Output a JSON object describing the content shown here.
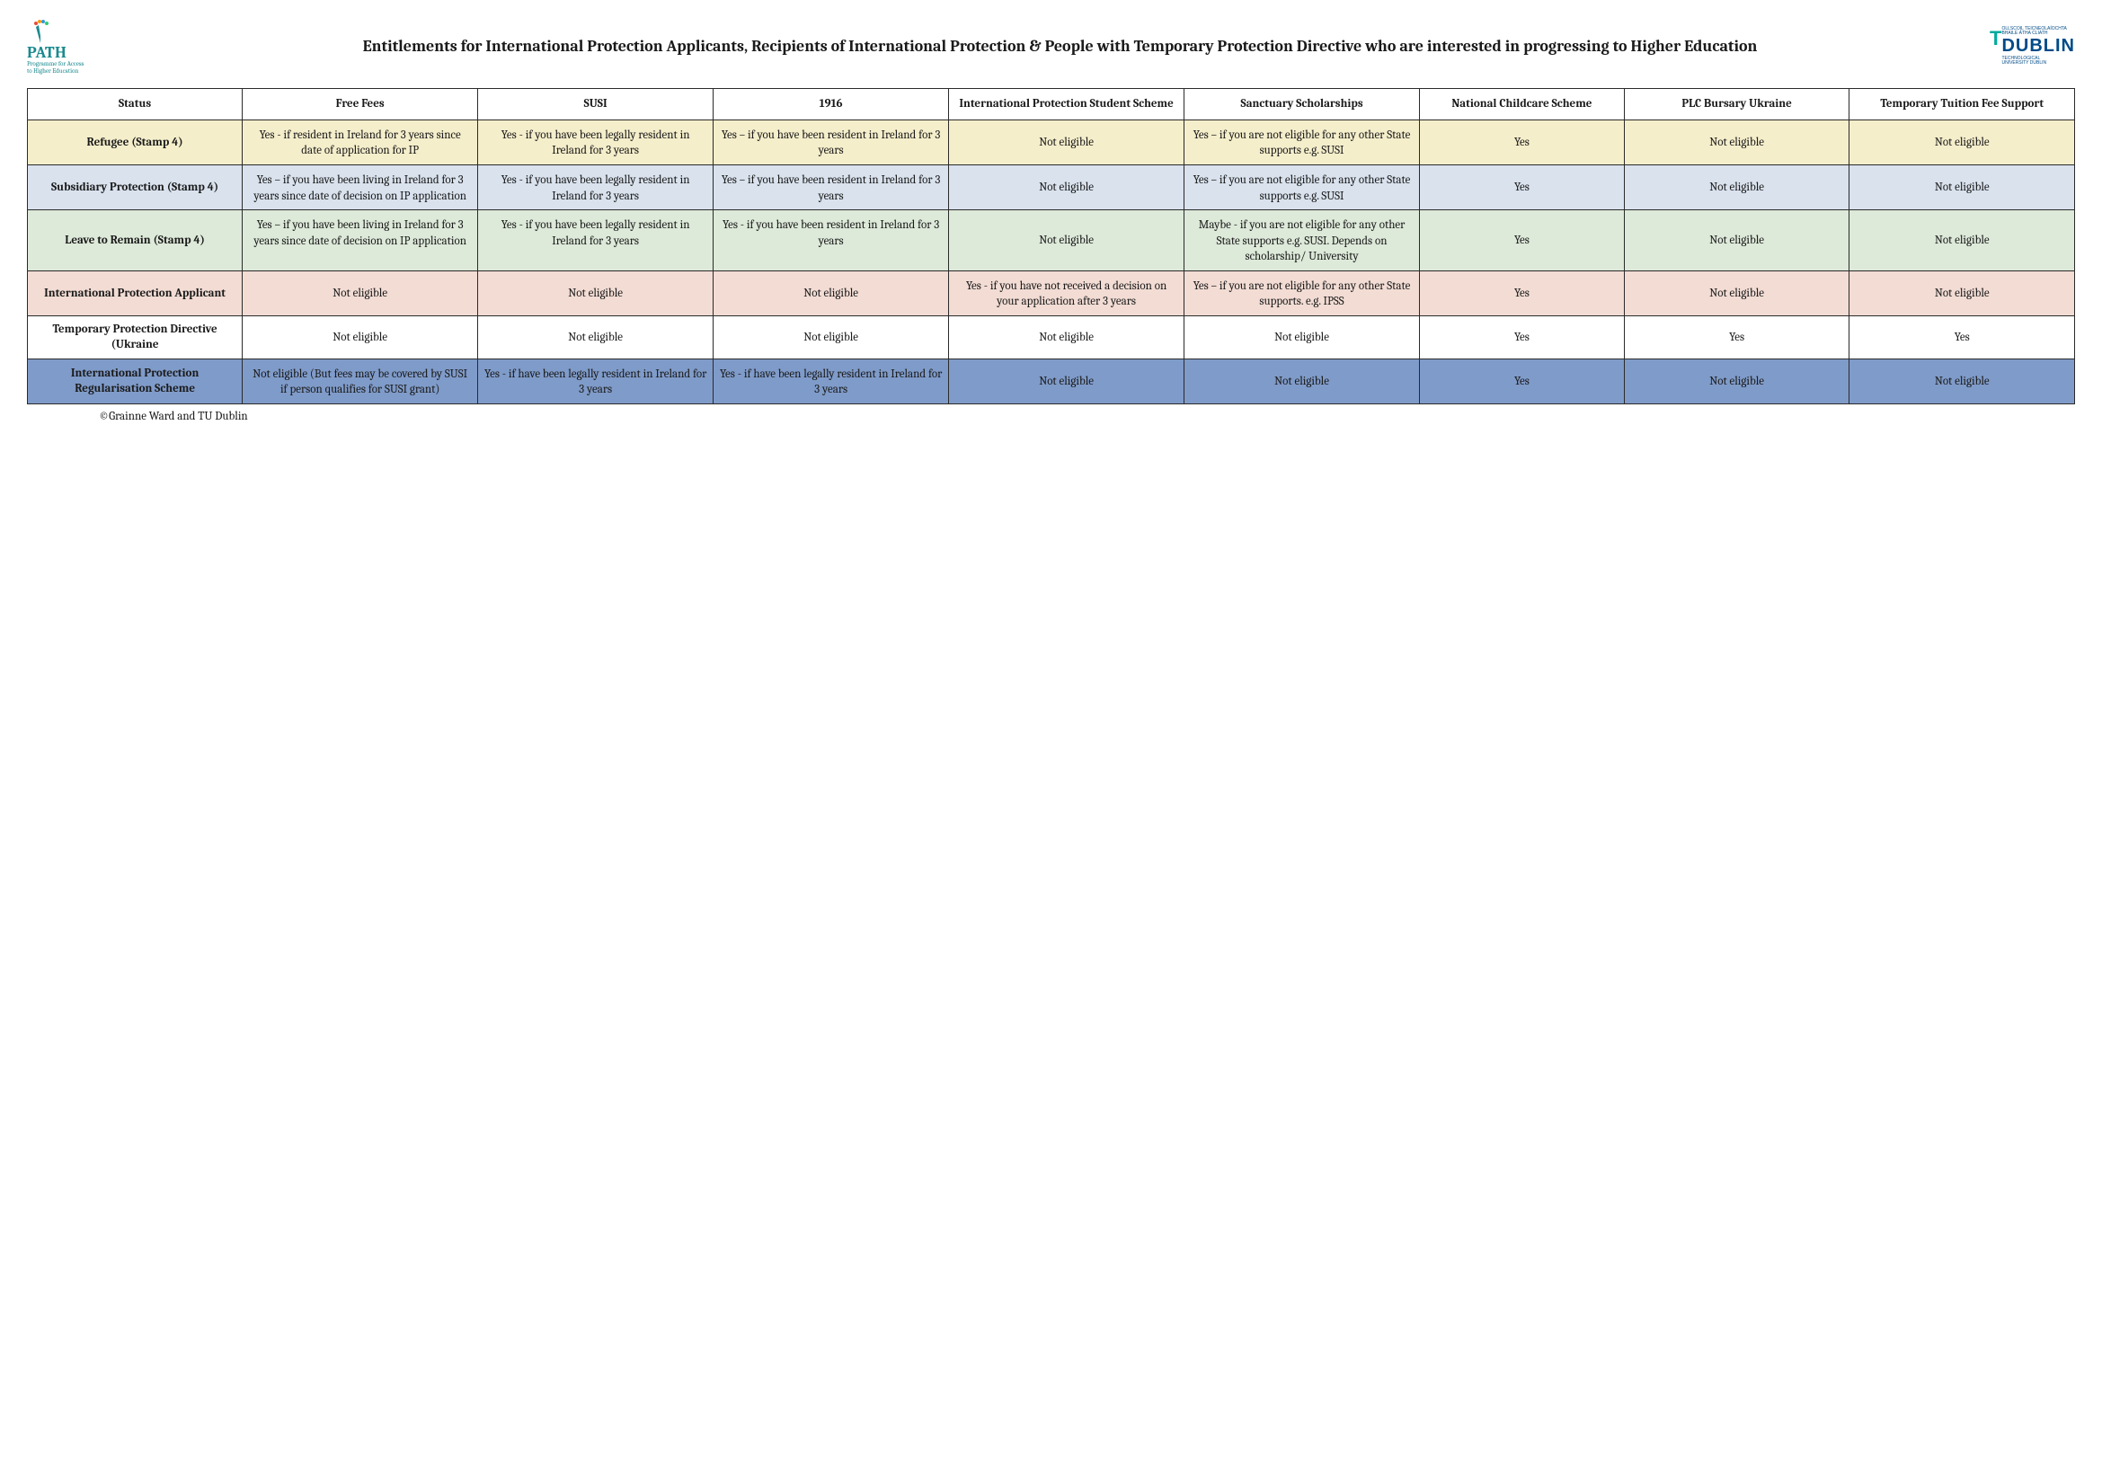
{
  "header": {
    "logo_left": {
      "name": "PATH",
      "sub1": "Programme for Access",
      "sub2": "to Higher Education"
    },
    "title": "Entitlements for International Protection Applicants, Recipients of International Protection & People with Temporary Protection Directive who are interested in progressing to Higher Education",
    "logo_right": {
      "t": "T",
      "dublin": "DUBLIN",
      "sub1": "OLLSCOIL TEICNEOLAÍOCHTA",
      "sub2": "BHAILE ÁTHA CLIATH",
      "sub3": "TECHNOLOGICAL",
      "sub4": "UNIVERSITY DUBLIN"
    }
  },
  "table": {
    "columns": [
      "Status",
      "Free Fees",
      "SUSI",
      "1916",
      "International Protection Student Scheme",
      "Sanctuary Scholarships",
      "National Childcare Scheme",
      "PLC Bursary Ukraine",
      "Temporary Tuition Fee Support"
    ],
    "row_colors": [
      "#f5eecb",
      "#d9e2ed",
      "#dde9d9",
      "#f2dcd4",
      "#ffffff",
      "#7f9bc9"
    ],
    "header_bg": "#ffffff",
    "border_color": "#2a2a2a",
    "rows": [
      {
        "status": "Refugee (Stamp 4)",
        "cells": [
          "Yes - if resident in Ireland for 3 years since date of application for IP",
          "Yes - if you have been legally resident in Ireland for 3 years",
          "Yes – if you have been resident in Ireland for 3 years",
          "Not eligible",
          "Yes – if you are not eligible for any other State supports e.g. SUSI",
          "Yes",
          "Not eligible",
          "Not eligible"
        ]
      },
      {
        "status": "Subsidiary Protection (Stamp 4)",
        "cells": [
          "Yes – if you have been living in Ireland for 3 years since date of decision on IP application",
          "Yes - if you have been legally resident in Ireland for 3 years",
          "Yes – if you have been resident in Ireland for 3 years",
          "Not eligible",
          "Yes – if you are not eligible for any other State supports e.g. SUSI",
          "Yes",
          "Not eligible",
          "Not eligible"
        ]
      },
      {
        "status": "Leave to Remain (Stamp 4)",
        "cells": [
          "Yes – if you have been living in Ireland for 3 years since date of decision on IP application",
          "Yes - if you have been legally resident in Ireland for 3 years",
          "Yes - if you have been resident in Ireland for 3 years",
          "Not eligible",
          "Maybe - if you are not eligible for any other State supports e.g. SUSI. Depends on scholarship/ University",
          "Yes",
          "Not eligible",
          "Not eligible"
        ]
      },
      {
        "status": "International Protection Applicant",
        "cells": [
          "Not eligible",
          "Not eligible",
          "Not eligible",
          "Yes - if you have not received a decision on your application after 3 years",
          "Yes – if you are not eligible for any other State supports. e.g. IPSS",
          "Yes",
          "Not eligible",
          "Not eligible"
        ]
      },
      {
        "status": "Temporary Protection Directive (Ukraine",
        "cells": [
          "Not eligible",
          "Not eligible",
          "Not eligible",
          "Not eligible",
          "Not eligible",
          "Yes",
          "Yes",
          "Yes"
        ]
      },
      {
        "status": "International Protection Regularisation Scheme",
        "cells": [
          "Not eligible (But fees may be covered by SUSI if person qualifies for SUSI grant)",
          "Yes - if have been legally resident in Ireland for 3 years",
          "Yes - if have been legally resident in Ireland for 3 years",
          "Not eligible",
          "Not eligible",
          "Yes",
          "Not eligible",
          "Not eligible"
        ]
      }
    ]
  },
  "footer": "©Grainne Ward and TU Dublin"
}
